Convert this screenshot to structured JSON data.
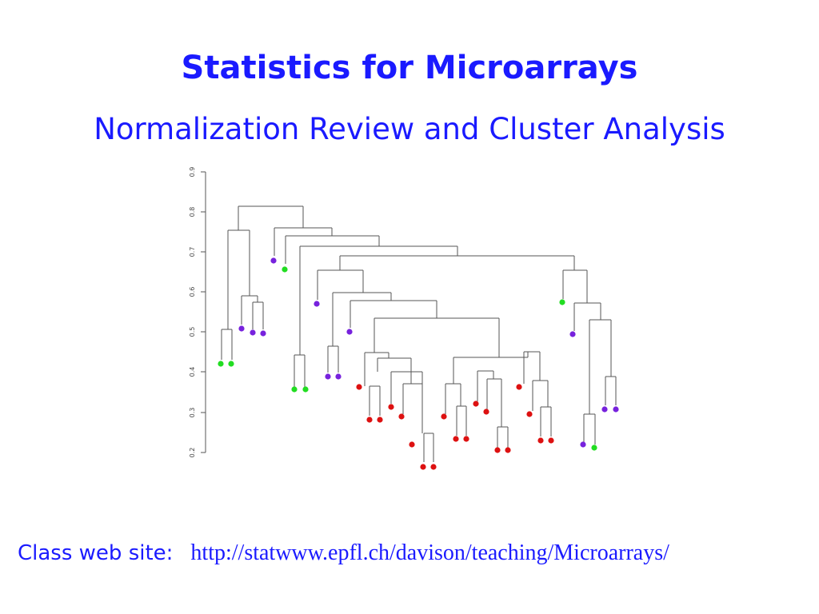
{
  "slide": {
    "title": "Statistics for Microarrays",
    "subtitle": "Normalization Review and Cluster Analysis",
    "footer_label": "Class web site:",
    "footer_url": "http://statwww.epfl.ch/davison/teaching/Microarrays/"
  },
  "dendrogram": {
    "y_ticks": [
      "0.2",
      "0.3",
      "0.4",
      "0.5",
      "0.6",
      "0.7",
      "0.8",
      "0.9"
    ],
    "line_color": "#555555",
    "leaf_colors": {
      "g": "#22dd22",
      "p": "#7722dd",
      "r": "#dd1111"
    }
  }
}
